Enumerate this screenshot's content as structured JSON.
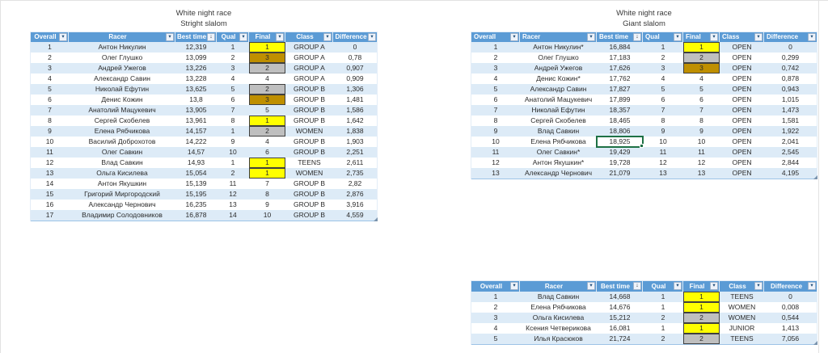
{
  "colors": {
    "header_bg": "#5b9bd5",
    "header_text": "#ffffff",
    "band": "#ddebf7",
    "gold": "#ffff00",
    "silver": "#bfbfbf",
    "bronze": "#bf8f00",
    "medal_border": "#3f3f3f",
    "selection_green": "#1e7145"
  },
  "icons": {
    "filter": "▾",
    "sorted_filter": "↓"
  },
  "selection": {
    "table_index": 1,
    "row_index": 9,
    "col_index": 2,
    "value": "18,925"
  },
  "tables": [
    {
      "id": "stright-slalom",
      "title1": "White night race",
      "title2": "Stright slalom",
      "columns": [
        "Overall",
        "Racer",
        "Best time",
        "Qual",
        "Final",
        "Class",
        "Difference"
      ],
      "sorted_column": 2,
      "finals": [
        "gold",
        "bronze",
        "silver",
        "",
        "silver",
        "bronze",
        "",
        "gold",
        "silver",
        "",
        "",
        "gold",
        "gold",
        "",
        "",
        "",
        ""
      ],
      "rows": [
        [
          "1",
          "Антон Никулин",
          "12,319",
          "1",
          "1",
          "GROUP A",
          "0"
        ],
        [
          "2",
          "Олег Глушко",
          "13,099",
          "2",
          "3",
          "GROUP A",
          "0,78"
        ],
        [
          "3",
          "Андрей Ужегов",
          "13,226",
          "3",
          "2",
          "GROUP A",
          "0,907"
        ],
        [
          "4",
          "Александр Савин",
          "13,228",
          "4",
          "4",
          "GROUP A",
          "0,909"
        ],
        [
          "5",
          "Николай Ефутин",
          "13,625",
          "5",
          "2",
          "GROUP B",
          "1,306"
        ],
        [
          "6",
          "Денис Кожин",
          "13,8",
          "6",
          "3",
          "GROUP B",
          "1,481"
        ],
        [
          "7",
          "Анатолий Мацукевич",
          "13,905",
          "7",
          "5",
          "GROUP B",
          "1,586"
        ],
        [
          "8",
          "Сергей Скобелев",
          "13,961",
          "8",
          "1",
          "GROUP B",
          "1,642"
        ],
        [
          "9",
          "Елена Рябчикова",
          "14,157",
          "1",
          "2",
          "WOMEN",
          "1,838"
        ],
        [
          "10",
          "Василий Доброхотов",
          "14,222",
          "9",
          "4",
          "GROUP B",
          "1,903"
        ],
        [
          "11",
          "Олег Савкин",
          "14,57",
          "10",
          "6",
          "GROUP B",
          "2,251"
        ],
        [
          "12",
          "Влад Савкин",
          "14,93",
          "1",
          "1",
          "TEENS",
          "2,611"
        ],
        [
          "13",
          "Ольга Кисилева",
          "15,054",
          "2",
          "1",
          "WOMEN",
          "2,735"
        ],
        [
          "14",
          "Антон Якушкин",
          "15,139",
          "11",
          "7",
          "GROUP B",
          "2,82"
        ],
        [
          "15",
          "Григорий Миргородский",
          "15,195",
          "12",
          "8",
          "GROUP B",
          "2,876"
        ],
        [
          "16",
          "Александр Чернович",
          "16,235",
          "13",
          "9",
          "GROUP B",
          "3,916"
        ],
        [
          "17",
          "Владимир Солодовников",
          "16,878",
          "14",
          "10",
          "GROUP B",
          "4,559"
        ]
      ]
    },
    {
      "id": "giant-slalom",
      "title1": "White night race",
      "title2": "Giant slalom",
      "columns": [
        "Overall",
        "Racer",
        "Best time",
        "Qual",
        "Final",
        "Class",
        "Difference"
      ],
      "sorted_column": 2,
      "finals": [
        "gold",
        "silver",
        "bronze",
        "",
        "",
        "",
        "",
        "",
        "",
        "",
        "",
        "",
        ""
      ],
      "rows": [
        [
          "1",
          "Антон Никулин*",
          "16,884",
          "1",
          "1",
          "OPEN",
          "0"
        ],
        [
          "2",
          "Олег Глушко",
          "17,183",
          "2",
          "2",
          "OPEN",
          "0,299"
        ],
        [
          "3",
          "Андрей Ужегов",
          "17,626",
          "3",
          "3",
          "OPEN",
          "0,742"
        ],
        [
          "4",
          "Денис Кожин*",
          "17,762",
          "4",
          "4",
          "OPEN",
          "0,878"
        ],
        [
          "5",
          "Александр Савин",
          "17,827",
          "5",
          "5",
          "OPEN",
          "0,943"
        ],
        [
          "6",
          "Анатолий Мацукевич",
          "17,899",
          "6",
          "6",
          "OPEN",
          "1,015"
        ],
        [
          "7",
          "Николай Ефутин",
          "18,357",
          "7",
          "7",
          "OPEN",
          "1,473"
        ],
        [
          "8",
          "Сергей Скобелев",
          "18,465",
          "8",
          "8",
          "OPEN",
          "1,581"
        ],
        [
          "9",
          "Влад Савкин",
          "18,806",
          "9",
          "9",
          "OPEN",
          "1,922"
        ],
        [
          "10",
          "Елена Рябчикова",
          "18,925",
          "10",
          "10",
          "OPEN",
          "2,041"
        ],
        [
          "11",
          "Олег Савкин*",
          "19,429",
          "11",
          "11",
          "OPEN",
          "2,545"
        ],
        [
          "12",
          "Антон Якушкин*",
          "19,728",
          "12",
          "12",
          "OPEN",
          "2,844"
        ],
        [
          "13",
          "Александр Чернович",
          "21,079",
          "13",
          "13",
          "OPEN",
          "4,195"
        ]
      ]
    },
    {
      "id": "class-finals",
      "title1": "",
      "title2": "",
      "columns": [
        "Overall",
        "Racer",
        "Best time",
        "Qual",
        "Final",
        "Class",
        "Difference"
      ],
      "sorted_column": 2,
      "finals": [
        "gold",
        "gold",
        "silver",
        "gold",
        "silver"
      ],
      "rows": [
        [
          "1",
          "Влад Савкин",
          "14,668",
          "1",
          "1",
          "TEENS",
          "0"
        ],
        [
          "2",
          "Елена Рябчикова",
          "14,676",
          "1",
          "1",
          "WOMEN",
          "0,008"
        ],
        [
          "3",
          "Ольга Кисилева",
          "15,212",
          "2",
          "2",
          "WOMEN",
          "0,544"
        ],
        [
          "4",
          "Ксения Четверикова",
          "16,081",
          "1",
          "1",
          "JUNIOR",
          "1,413"
        ],
        [
          "5",
          "Илья Красюков",
          "21,724",
          "2",
          "2",
          "TEENS",
          "7,056"
        ]
      ]
    }
  ]
}
